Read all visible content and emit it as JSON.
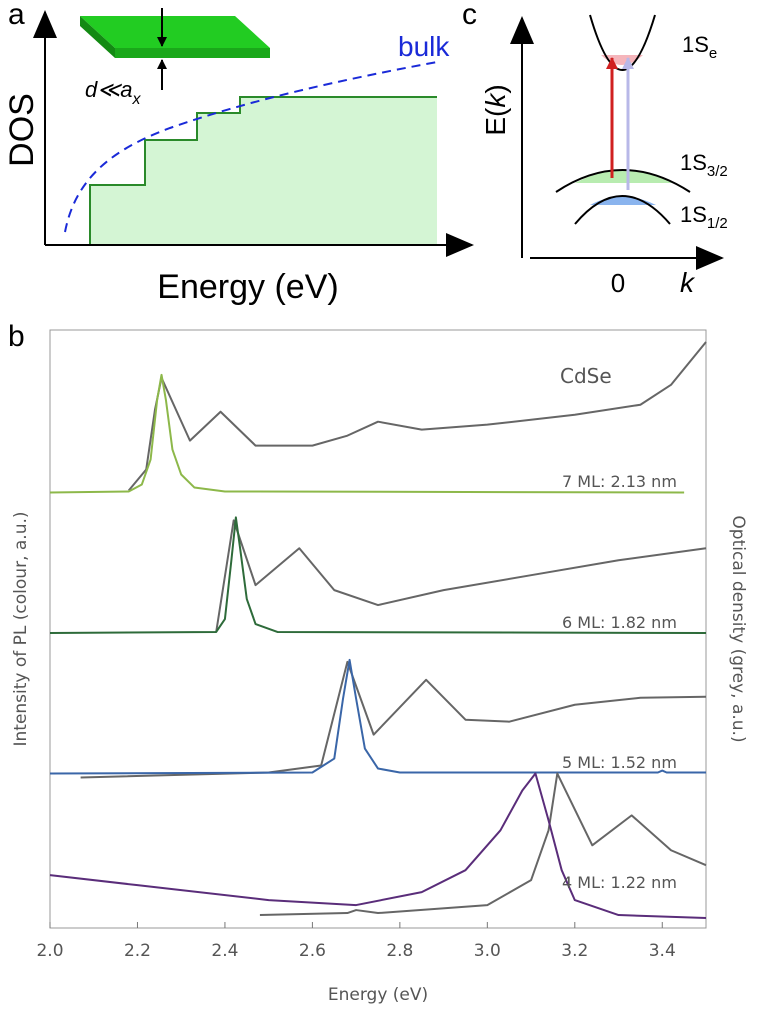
{
  "panels": {
    "a": {
      "label": "a",
      "y_label": "DOS",
      "x_label": "Energy (eV)",
      "curve_label": "bulk",
      "thickness": {
        "text": "d≪a",
        "sub": "x"
      }
    },
    "c": {
      "label": "c",
      "y_label": {
        "pre": "E(",
        "var": "k",
        "post": ")"
      },
      "x_zero": "0",
      "x_label": "k",
      "levels": [
        {
          "main": "1S",
          "sub": "e"
        },
        {
          "main": "1S",
          "sub": "3/2"
        },
        {
          "main": "1S",
          "sub": "1/2"
        }
      ]
    }
  },
  "chart_data": {
    "type": "line",
    "panel_label": "b",
    "xlabel": "Energy (eV)",
    "ylabel": "Intensity of PL (colour, a.u.)",
    "y2label": "Optical density (grey, a.u.)",
    "xlim": [
      2.0,
      3.5
    ],
    "ylim": [
      0,
      6
    ],
    "xticks": [
      {
        "value": 2.0,
        "label": "2.0"
      },
      {
        "value": 2.2,
        "label": "2.2"
      },
      {
        "value": 2.4,
        "label": "2.4"
      },
      {
        "value": 2.6,
        "label": "2.6"
      },
      {
        "value": 2.8,
        "label": "2.8"
      },
      {
        "value": 3.0,
        "label": "3.0"
      },
      {
        "value": 3.2,
        "label": "3.2"
      },
      {
        "value": 3.4,
        "label": "3.4"
      }
    ],
    "annotations": [
      "CdSe",
      "7 ML: 2.13 nm",
      "6 ML: 1.82 nm",
      "5 ML: 1.52 nm",
      "4 ML: 1.22 nm"
    ],
    "series": [
      {
        "color": "#666666",
        "x": [
          2.18,
          2.22,
          2.24,
          2.255,
          2.32,
          2.39,
          2.47,
          2.6,
          2.68,
          2.75,
          2.85,
          3.0,
          3.2,
          3.35,
          3.42,
          3.5
        ],
        "values": [
          4.39,
          4.6,
          5.2,
          5.52,
          4.89,
          5.18,
          4.84,
          4.84,
          4.94,
          5.08,
          5.0,
          5.05,
          5.15,
          5.25,
          5.45,
          5.88
        ]
      },
      {
        "color": "#8db84a",
        "x": [
          2.0,
          2.18,
          2.21,
          2.23,
          2.245,
          2.255,
          2.265,
          2.28,
          2.3,
          2.33,
          2.4,
          3.45
        ],
        "values": [
          4.37,
          4.38,
          4.45,
          4.7,
          5.3,
          5.55,
          5.3,
          4.8,
          4.55,
          4.42,
          4.38,
          4.37
        ]
      },
      {
        "color": "#666666",
        "x": [
          2.38,
          2.42,
          2.47,
          2.57,
          2.65,
          2.75,
          2.9,
          3.1,
          3.3,
          3.5
        ],
        "values": [
          2.97,
          4.09,
          3.44,
          3.81,
          3.39,
          3.24,
          3.39,
          3.54,
          3.69,
          3.81
        ]
      },
      {
        "color": "#2e6b3a",
        "x": [
          2.0,
          2.38,
          2.4,
          2.415,
          2.425,
          2.435,
          2.45,
          2.47,
          2.52,
          3.5
        ],
        "values": [
          2.96,
          2.97,
          3.1,
          3.7,
          4.12,
          3.8,
          3.3,
          3.05,
          2.97,
          2.96
        ]
      },
      {
        "color": "#666666",
        "x": [
          2.07,
          2.5,
          2.62,
          2.68,
          2.74,
          2.86,
          2.95,
          3.05,
          3.2,
          3.35,
          3.5
        ],
        "values": [
          1.51,
          1.56,
          1.63,
          2.67,
          1.94,
          2.49,
          2.09,
          2.07,
          2.24,
          2.31,
          2.32
        ]
      },
      {
        "color": "#3a66a8",
        "x": [
          2.0,
          2.6,
          2.65,
          2.67,
          2.685,
          2.7,
          2.72,
          2.75,
          2.8,
          3.39,
          3.4,
          3.41,
          3.5
        ],
        "values": [
          1.55,
          1.56,
          1.7,
          2.3,
          2.69,
          2.3,
          1.8,
          1.6,
          1.56,
          1.56,
          1.58,
          1.56,
          1.56
        ]
      },
      {
        "color": "#666666",
        "x": [
          2.48,
          2.68,
          2.7,
          2.75,
          3.0,
          3.1,
          3.14,
          3.16,
          3.24,
          3.33,
          3.42,
          3.5
        ],
        "values": [
          0.13,
          0.15,
          0.18,
          0.15,
          0.23,
          0.48,
          0.98,
          1.55,
          0.83,
          1.13,
          0.78,
          0.63
        ]
      },
      {
        "color": "#5a2d7a",
        "x": [
          2.0,
          2.2,
          2.5,
          2.7,
          2.85,
          2.95,
          3.03,
          3.08,
          3.11,
          3.14,
          3.17,
          3.2,
          3.3,
          3.5
        ],
        "values": [
          0.53,
          0.43,
          0.28,
          0.23,
          0.36,
          0.58,
          0.98,
          1.38,
          1.55,
          1.08,
          0.58,
          0.28,
          0.13,
          0.1
        ]
      }
    ]
  }
}
